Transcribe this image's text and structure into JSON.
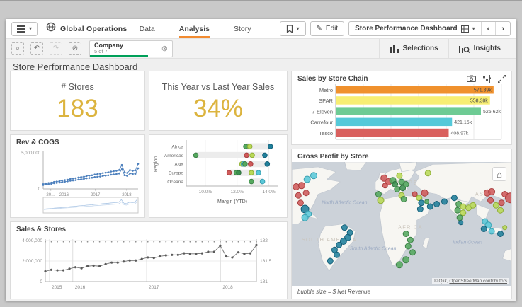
{
  "topbar": {
    "app_name": "Global Operations",
    "tabs": [
      {
        "label": "Data",
        "active": false
      },
      {
        "label": "Analysis",
        "active": true
      },
      {
        "label": "Story",
        "active": false
      }
    ],
    "edit_label": "Edit",
    "sheet_selector_label": "Store Performance Dashboard",
    "accent_color": "#f28b31"
  },
  "selection_bar": {
    "tools": [
      {
        "icon": "search-selections-icon",
        "glyph": "⌕",
        "disabled": false
      },
      {
        "icon": "step-back-icon",
        "glyph": "↶",
        "disabled": false
      },
      {
        "icon": "step-forward-icon",
        "glyph": "↷",
        "disabled": true
      },
      {
        "icon": "clear-selections-icon",
        "glyph": "⊘",
        "disabled": false
      }
    ],
    "filter_chip": {
      "field": "Company",
      "status": "5 of 7",
      "bar_color": "#00a059"
    },
    "selections_label": "Selections",
    "insights_label": "Insights"
  },
  "sheet": {
    "title": "Store Performance Dashboard"
  },
  "kpis": [
    {
      "label": "# Stores",
      "value": "183",
      "color": "#dcb43f"
    },
    {
      "label": "This Year vs Last Year Sales",
      "value": "34%",
      "color": "#dcb43f"
    }
  ],
  "chart_data": [
    {
      "id": "sales_by_chain",
      "type": "bar",
      "orientation": "horizontal",
      "title": "Sales by Store Chain",
      "categories": [
        "Metro",
        "SPAR",
        "7-Eleven",
        "Carrefour",
        "Tesco"
      ],
      "values": [
        571.39,
        558.38,
        525.62,
        421.15,
        408.97
      ],
      "value_labels": [
        "571.39k",
        "558.38k",
        "525.62k",
        "421.15k",
        "408.97k"
      ],
      "label_inside": [
        true,
        true,
        false,
        false,
        false
      ],
      "colors": [
        "#f0912d",
        "#f7ee73",
        "#6ecb94",
        "#55c9d9",
        "#d9605e"
      ],
      "xlim": [
        0,
        600
      ],
      "grid_step": 100,
      "grid": true
    },
    {
      "id": "rev_cogs",
      "type": "line",
      "title": "Rev & COGS",
      "y_ticks": [
        "5,000,000",
        "0"
      ],
      "ylim": [
        0,
        5000000
      ],
      "x_ticks": [
        "20…",
        "2016",
        "2017",
        "2018"
      ],
      "x_tick_pos": [
        0.08,
        0.22,
        0.55,
        0.88
      ],
      "line_color": "#4d80bd",
      "has_navigator": true,
      "series": [
        {
          "name": "Rev",
          "values": [
            650000,
            750000,
            800000,
            850000,
            950000,
            1000000,
            1050000,
            1150000,
            1200000,
            1250000,
            1350000,
            1400000,
            1450000,
            1550000,
            1600000,
            1650000,
            1750000,
            1800000,
            1850000,
            1950000,
            2000000,
            2050000,
            2150000,
            2200000,
            2250000,
            2350000,
            2400000,
            2450000,
            2550000,
            3250000,
            2250000,
            2150000,
            2550000,
            2450000,
            2500000,
            3400000
          ]
        },
        {
          "name": "COGS",
          "values": [
            530000,
            610000,
            650000,
            700000,
            780000,
            820000,
            860000,
            940000,
            980000,
            1030000,
            1110000,
            1150000,
            1190000,
            1270000,
            1310000,
            1350000,
            1440000,
            1480000,
            1520000,
            1600000,
            1640000,
            1680000,
            1760000,
            1800000,
            1850000,
            1930000,
            1970000,
            2010000,
            2090000,
            2670000,
            1850000,
            1760000,
            2090000,
            2010000,
            2050000,
            2790000
          ]
        }
      ]
    },
    {
      "id": "margin_by_region",
      "type": "scatter",
      "ylabel": "Region",
      "xlabel": "Margin (YTD)",
      "categories": [
        "Africa",
        "Americas",
        "Asia",
        "Europe",
        "Oceana"
      ],
      "x_ticks": [
        "10.0%",
        "12.0%",
        "14.0%"
      ],
      "x_tick_vals": [
        10,
        12,
        14
      ],
      "xlim": [
        8.8,
        14.6
      ],
      "bands": [
        [
          12.45,
          14.15
        ],
        [
          9.3,
          13.8
        ],
        [
          12.2,
          13.95
        ],
        [
          11.4,
          13.4
        ],
        [
          12.8,
          13.7
        ]
      ],
      "points": [
        {
          "region": "Africa",
          "x": 12.55,
          "color": "green"
        },
        {
          "region": "Africa",
          "x": 12.8,
          "color": "ltgreen"
        },
        {
          "region": "Africa",
          "x": 14.1,
          "color": "teal"
        },
        {
          "region": "Americas",
          "x": 9.4,
          "color": "green"
        },
        {
          "region": "Americas",
          "x": 12.6,
          "color": "red"
        },
        {
          "region": "Americas",
          "x": 12.95,
          "color": "ltgreen"
        },
        {
          "region": "Americas",
          "x": 13.75,
          "color": "teal"
        },
        {
          "region": "Asia",
          "x": 12.3,
          "color": "ltgreen"
        },
        {
          "region": "Asia",
          "x": 12.4,
          "color": "cyan"
        },
        {
          "region": "Asia",
          "x": 12.5,
          "color": "green"
        },
        {
          "region": "Asia",
          "x": 12.85,
          "color": "red"
        },
        {
          "region": "Asia",
          "x": 13.9,
          "color": "teal"
        },
        {
          "region": "Europe",
          "x": 11.5,
          "color": "red"
        },
        {
          "region": "Europe",
          "x": 11.95,
          "color": "green"
        },
        {
          "region": "Europe",
          "x": 12.1,
          "color": "dkgreen"
        },
        {
          "region": "Europe",
          "x": 12.9,
          "color": "ltgreen"
        },
        {
          "region": "Europe",
          "x": 13.35,
          "color": "cyan"
        },
        {
          "region": "Oceana",
          "x": 12.9,
          "color": "green"
        },
        {
          "region": "Oceana",
          "x": 13.6,
          "color": "cyan"
        }
      ]
    },
    {
      "id": "sales_stores",
      "type": "line",
      "title": "Sales & Stores",
      "y_ticks_left": [
        "4,000,000",
        "2,000,000",
        "0"
      ],
      "ylim_left": [
        0,
        4000000
      ],
      "y_ticks_right": [
        "182",
        "181.5",
        "181"
      ],
      "ylim_right": [
        181,
        182
      ],
      "x_ticks": [
        "2015",
        "2016",
        "2017",
        "2018"
      ],
      "x_tick_pos": [
        0.02,
        0.13,
        0.48,
        0.83
      ],
      "line_color": "#707070",
      "series": [
        {
          "name": "Sales",
          "axis": "left",
          "values": [
            1000000,
            1150000,
            1100000,
            1100000,
            1250000,
            1400000,
            1300000,
            1500000,
            1550000,
            1500000,
            1700000,
            1850000,
            1850000,
            1950000,
            2050000,
            2050000,
            2200000,
            2350000,
            2300000,
            2450000,
            2550000,
            2600000,
            2600000,
            2750000,
            2700000,
            2700000,
            2750000,
            2900000,
            2900000,
            3500000,
            2450000,
            2350000,
            2850000,
            2700000,
            2750000,
            3550000
          ]
        },
        {
          "name": "Stores",
          "axis": "right",
          "constant": 181.97,
          "count": 36
        }
      ]
    },
    {
      "id": "gross_profit_map",
      "type": "map",
      "title": "Gross Profit by Store",
      "footnote": "bubble size = $ Net Revenue",
      "attribution_prefix": "© Qlik, ",
      "attribution_link": "OpenStreetMap contributors",
      "legend_note": "bubble size = $ Net Revenue",
      "labels": [
        {
          "text": "North Atlantic Ocean",
          "x": 24,
          "y": 34,
          "kind": "ocean"
        },
        {
          "text": "EUROPE",
          "x": 51,
          "y": 18,
          "kind": "continent"
        },
        {
          "text": "ASIA",
          "x": 87,
          "y": 27,
          "kind": "continent"
        },
        {
          "text": "AFRICA",
          "x": 54,
          "y": 54,
          "kind": "continent"
        },
        {
          "text": "SOUTH AMERICA",
          "x": 17,
          "y": 64,
          "kind": "continent"
        },
        {
          "text": "South Atlantic Ocean",
          "x": 37,
          "y": 71,
          "kind": "ocean"
        },
        {
          "text": "Indian Ocean",
          "x": 80,
          "y": 66,
          "kind": "ocean"
        }
      ],
      "palette": {
        "red": "#cf5a5a",
        "green": "#54a85e",
        "dkgreen": "#3c8f50",
        "ltgreen": "#b9d957",
        "cyan": "#5ac8d8",
        "teal": "#20809b"
      },
      "palette_stroke": {
        "red": "#a93f3f",
        "green": "#3c7f46",
        "dkgreen": "#2d6e3c",
        "ltgreen": "#8fae37",
        "cyan": "#3a9fb0",
        "teal": "#15607a"
      },
      "ocean_color": "#ccd2d9",
      "land_color": "#f7f6f2",
      "bubbles": [
        [
          2,
          20,
          "red",
          4.5
        ],
        [
          4.5,
          19,
          "red",
          4.5
        ],
        [
          7,
          14,
          "cyan",
          4.5
        ],
        [
          10,
          11,
          "cyan",
          4.5
        ],
        [
          3,
          27,
          "red",
          4
        ],
        [
          6.5,
          25,
          "red",
          4
        ],
        [
          4,
          33,
          "red",
          4
        ],
        [
          6,
          38,
          "teal",
          5.5
        ],
        [
          7.5,
          42,
          "cyan",
          4.5
        ],
        [
          6,
          45,
          "cyan",
          4.5
        ],
        [
          42,
          13,
          "red",
          4.5
        ],
        [
          44,
          16,
          "red",
          4.5
        ],
        [
          42.5,
          19,
          "red",
          3.5
        ],
        [
          46,
          15,
          "green",
          4.5
        ],
        [
          47,
          18,
          "dkgreen",
          4
        ],
        [
          49,
          11,
          "ltgreen",
          4
        ],
        [
          50,
          16,
          "green",
          4
        ],
        [
          48,
          22,
          "green",
          4
        ],
        [
          50.5,
          21,
          "dkgreen",
          4
        ],
        [
          52,
          18,
          "green",
          4
        ],
        [
          50,
          27,
          "ltgreen",
          4
        ],
        [
          51,
          30,
          "green",
          4
        ],
        [
          62,
          9,
          "ltgreen",
          4
        ],
        [
          39.5,
          26,
          "green",
          4
        ],
        [
          40.5,
          31,
          "ltgreen",
          4.5
        ],
        [
          56,
          26,
          "red",
          3.5
        ],
        [
          58,
          29,
          "ltgreen",
          4
        ],
        [
          60.5,
          25,
          "red",
          4.5
        ],
        [
          59,
          33,
          "teal",
          4
        ],
        [
          61.5,
          32,
          "green",
          3
        ],
        [
          58.5,
          38,
          "teal",
          4
        ],
        [
          63,
          36,
          "teal",
          4
        ],
        [
          66,
          34,
          "teal",
          4
        ],
        [
          69.5,
          32,
          "teal",
          4
        ],
        [
          74,
          29,
          "teal",
          4
        ],
        [
          76,
          34,
          "green",
          4
        ],
        [
          78,
          36,
          "ltgreen",
          4
        ],
        [
          75.5,
          39,
          "green",
          4
        ],
        [
          78,
          41,
          "ltgreen",
          4
        ],
        [
          80.5,
          37,
          "ltgreen",
          4
        ],
        [
          82.5,
          35,
          "ltgreen",
          4
        ],
        [
          76.5,
          45,
          "green",
          4
        ],
        [
          77,
          49,
          "teal",
          3
        ],
        [
          89,
          25,
          "red",
          4.5
        ],
        [
          91,
          24,
          "red",
          4.5
        ],
        [
          97,
          26,
          "red",
          4
        ],
        [
          99.5,
          29,
          "red",
          7
        ],
        [
          95.5,
          33,
          "red",
          4
        ],
        [
          90.5,
          31,
          "red",
          4
        ],
        [
          93,
          35,
          "ltgreen",
          4
        ],
        [
          95,
          39,
          "ltgreen",
          4
        ],
        [
          88,
          48,
          "cyan",
          4
        ],
        [
          89.5,
          51,
          "cyan",
          4.5
        ],
        [
          87.5,
          54,
          "teal",
          4
        ],
        [
          91,
          56,
          "cyan",
          4
        ],
        [
          95,
          58,
          "teal",
          4
        ],
        [
          97,
          53,
          "ltgreen",
          3
        ],
        [
          24,
          53,
          "teal",
          4
        ],
        [
          26.5,
          57,
          "teal",
          4
        ],
        [
          25.5,
          61,
          "teal",
          4.5
        ],
        [
          23.5,
          64,
          "teal",
          4.5
        ],
        [
          21.5,
          67,
          "teal",
          4
        ],
        [
          19.5,
          71,
          "teal",
          4
        ],
        [
          20.5,
          75,
          "teal",
          4
        ],
        [
          17.5,
          80,
          "teal",
          4
        ],
        [
          52,
          58,
          "green",
          4
        ],
        [
          54,
          63,
          "green",
          4
        ],
        [
          53,
          68,
          "green",
          4
        ],
        [
          55,
          73,
          "green",
          4
        ],
        [
          52,
          79,
          "green",
          4.5
        ],
        [
          49,
          83,
          "green",
          4.5
        ]
      ]
    }
  ]
}
